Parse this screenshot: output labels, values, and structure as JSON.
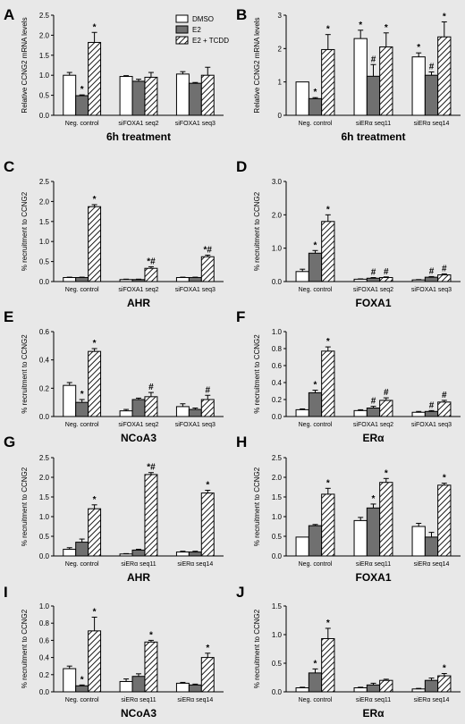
{
  "figure": {
    "legend": {
      "items": [
        {
          "label": "DMSO",
          "fill": "white"
        },
        {
          "label": "E2",
          "fill": "gray"
        },
        {
          "label": "E2 + TCDD",
          "fill": "hatch"
        }
      ]
    },
    "colors": {
      "background": "#e8e8e8",
      "bar_gray": "#707070",
      "outline": "#000000"
    }
  },
  "chart_data": [
    {
      "panel": "A",
      "type": "bar",
      "ylabel": "Relative CCNG2 mRNA levels",
      "xlabel": "6h treatment",
      "ylim": [
        0,
        2.5
      ],
      "yticks": [
        "0.0",
        "0.5",
        "1.0",
        "1.5",
        "2.0",
        "2.5"
      ],
      "categories": [
        "Neg. control",
        "siFOXA1 seq2",
        "siFOXA1 seq3"
      ],
      "series": [
        {
          "name": "DMSO",
          "values": [
            1.0,
            0.97,
            1.03
          ],
          "errors": [
            0.07,
            0.02,
            0.06
          ],
          "marks": [
            "",
            "",
            ""
          ]
        },
        {
          "name": "E2",
          "values": [
            0.49,
            0.85,
            0.8
          ],
          "errors": [
            0.02,
            0.05,
            0.02
          ],
          "marks": [
            "*",
            "",
            ""
          ]
        },
        {
          "name": "E2 + TCDD",
          "values": [
            1.82,
            0.95,
            1.0
          ],
          "errors": [
            0.25,
            0.12,
            0.2
          ],
          "marks": [
            "*",
            "",
            ""
          ]
        }
      ]
    },
    {
      "panel": "B",
      "type": "bar",
      "ylabel": "Relative CCNG2 mRNA levels",
      "xlabel": "6h treatment",
      "ylim": [
        0,
        3
      ],
      "yticks": [
        "0",
        "1",
        "2",
        "3"
      ],
      "categories": [
        "Neg. control",
        "siERα seq11",
        "siERα seq14"
      ],
      "series": [
        {
          "name": "DMSO",
          "values": [
            1.0,
            2.3,
            1.75
          ],
          "errors": [
            0.0,
            0.25,
            0.12
          ],
          "marks": [
            "",
            "*",
            "*"
          ]
        },
        {
          "name": "E2",
          "values": [
            0.5,
            1.17,
            1.2
          ],
          "errors": [
            0.03,
            0.35,
            0.1
          ],
          "marks": [
            "*",
            "#",
            "#"
          ]
        },
        {
          "name": "E2 + TCDD",
          "values": [
            1.97,
            2.05,
            2.35
          ],
          "errors": [
            0.45,
            0.42,
            0.45
          ],
          "marks": [
            "*",
            "*",
            "*"
          ]
        }
      ]
    },
    {
      "panel": "C",
      "type": "bar",
      "ylabel": "% recruitment to CCNG2",
      "xlabel": "AHR",
      "ylim": [
        0,
        2.5
      ],
      "yticks": [
        "0.0",
        "0.5",
        "1.0",
        "1.5",
        "2.0",
        "2.5"
      ],
      "categories": [
        "Neg. control",
        "siFOXA1 seq2",
        "siFOXA1 seq3"
      ],
      "series": [
        {
          "name": "DMSO",
          "values": [
            0.1,
            0.05,
            0.1
          ],
          "errors": [
            0.01,
            0.01,
            0.01
          ],
          "marks": [
            "",
            "",
            ""
          ]
        },
        {
          "name": "E2",
          "values": [
            0.1,
            0.05,
            0.1
          ],
          "errors": [
            0.01,
            0.01,
            0.01
          ],
          "marks": [
            "",
            "",
            ""
          ]
        },
        {
          "name": "E2 + TCDD",
          "values": [
            1.87,
            0.33,
            0.62
          ],
          "errors": [
            0.05,
            0.04,
            0.04
          ],
          "marks": [
            "*",
            "*#",
            "*#"
          ]
        }
      ]
    },
    {
      "panel": "D",
      "type": "bar",
      "ylabel": "% recruitment to CCNG2",
      "xlabel": "FOXA1",
      "ylim": [
        0,
        3
      ],
      "yticks": [
        "0.0",
        "1.0",
        "2.0",
        "3.0"
      ],
      "categories": [
        "Neg. control",
        "siFOXA1 seq2",
        "siFOXA1 seq3"
      ],
      "series": [
        {
          "name": "DMSO",
          "values": [
            0.3,
            0.07,
            0.05
          ],
          "errors": [
            0.07,
            0.01,
            0.01
          ],
          "marks": [
            "",
            "",
            ""
          ]
        },
        {
          "name": "E2",
          "values": [
            0.85,
            0.1,
            0.13
          ],
          "errors": [
            0.08,
            0.02,
            0.02
          ],
          "marks": [
            "*",
            "#",
            "#"
          ]
        },
        {
          "name": "E2 + TCDD",
          "values": [
            1.8,
            0.12,
            0.2
          ],
          "errors": [
            0.2,
            0.02,
            0.03
          ],
          "marks": [
            "*",
            "#",
            "#"
          ]
        }
      ]
    },
    {
      "panel": "E",
      "type": "bar",
      "ylabel": "% recruitment to CCNG2",
      "xlabel": "NCoA3",
      "ylim": [
        0,
        0.6
      ],
      "yticks": [
        "0.0",
        "0.2",
        "0.4",
        "0.6"
      ],
      "categories": [
        "Neg. control",
        "siFOXA1 seq2",
        "siFOXA1 seq3"
      ],
      "series": [
        {
          "name": "DMSO",
          "values": [
            0.22,
            0.04,
            0.07
          ],
          "errors": [
            0.02,
            0.01,
            0.02
          ],
          "marks": [
            "",
            "",
            ""
          ]
        },
        {
          "name": "E2",
          "values": [
            0.1,
            0.12,
            0.05
          ],
          "errors": [
            0.02,
            0.01,
            0.01
          ],
          "marks": [
            "*",
            "",
            ""
          ]
        },
        {
          "name": "E2 + TCDD",
          "values": [
            0.46,
            0.14,
            0.12
          ],
          "errors": [
            0.02,
            0.03,
            0.03
          ],
          "marks": [
            "*",
            "#",
            "#"
          ]
        }
      ]
    },
    {
      "panel": "F",
      "type": "bar",
      "ylabel": "% recruitment to CCNG2",
      "xlabel": "ERα",
      "ylim": [
        0,
        1.0
      ],
      "yticks": [
        "0.0",
        "0.2",
        "0.4",
        "0.6",
        "0.8",
        "1.0"
      ],
      "categories": [
        "Neg. control",
        "siFOXA1 seq2",
        "siFOXA1 seq3"
      ],
      "series": [
        {
          "name": "DMSO",
          "values": [
            0.08,
            0.07,
            0.05
          ],
          "errors": [
            0.01,
            0.01,
            0.01
          ],
          "marks": [
            "",
            "",
            ""
          ]
        },
        {
          "name": "E2",
          "values": [
            0.28,
            0.1,
            0.06
          ],
          "errors": [
            0.03,
            0.02,
            0.01
          ],
          "marks": [
            "*",
            "#",
            "#"
          ]
        },
        {
          "name": "E2 + TCDD",
          "values": [
            0.77,
            0.19,
            0.17
          ],
          "errors": [
            0.05,
            0.03,
            0.02
          ],
          "marks": [
            "*",
            "#",
            "#"
          ]
        }
      ]
    },
    {
      "panel": "G",
      "type": "bar",
      "ylabel": "% recruitment to CCNG2",
      "xlabel": "AHR",
      "ylim": [
        0,
        2.5
      ],
      "yticks": [
        "0.0",
        "0.5",
        "1.0",
        "1.5",
        "2.0",
        "2.5"
      ],
      "categories": [
        "Neg. control",
        "siERα seq11",
        "siERα seq14"
      ],
      "series": [
        {
          "name": "DMSO",
          "values": [
            0.17,
            0.05,
            0.1
          ],
          "errors": [
            0.04,
            0.01,
            0.02
          ],
          "marks": [
            "",
            "",
            ""
          ]
        },
        {
          "name": "E2",
          "values": [
            0.35,
            0.15,
            0.1
          ],
          "errors": [
            0.08,
            0.02,
            0.02
          ],
          "marks": [
            "",
            "",
            ""
          ]
        },
        {
          "name": "E2 + TCDD",
          "values": [
            1.2,
            2.07,
            1.6
          ],
          "errors": [
            0.1,
            0.05,
            0.07
          ],
          "marks": [
            "*",
            "*#",
            "*"
          ]
        }
      ]
    },
    {
      "panel": "H",
      "type": "bar",
      "ylabel": "% recruitment to CCNG2",
      "xlabel": "FOXA1",
      "ylim": [
        0,
        2.5
      ],
      "yticks": [
        "0.0",
        "0.5",
        "1.0",
        "1.5",
        "2.0",
        "2.5"
      ],
      "categories": [
        "Neg. control",
        "siERα seq11",
        "siERα seq14"
      ],
      "series": [
        {
          "name": "DMSO",
          "values": [
            0.48,
            0.9,
            0.75
          ],
          "errors": [
            0.0,
            0.08,
            0.08
          ],
          "marks": [
            "",
            "",
            ""
          ]
        },
        {
          "name": "E2",
          "values": [
            0.77,
            1.22,
            0.48
          ],
          "errors": [
            0.03,
            0.1,
            0.12
          ],
          "marks": [
            "",
            "*",
            ""
          ]
        },
        {
          "name": "E2 + TCDD",
          "values": [
            1.57,
            1.87,
            1.8
          ],
          "errors": [
            0.15,
            0.1,
            0.05
          ],
          "marks": [
            "*",
            "*",
            "*"
          ]
        }
      ]
    },
    {
      "panel": "I",
      "type": "bar",
      "ylabel": "% recruitment to CCNG2",
      "xlabel": "NCoA3",
      "ylim": [
        0,
        1.0
      ],
      "yticks": [
        "0.0",
        "0.2",
        "0.4",
        "0.6",
        "0.8",
        "1.0"
      ],
      "categories": [
        "Neg. control",
        "siERα seq11",
        "siERα seq14"
      ],
      "series": [
        {
          "name": "DMSO",
          "values": [
            0.27,
            0.12,
            0.1
          ],
          "errors": [
            0.03,
            0.03,
            0.01
          ],
          "marks": [
            "",
            "",
            ""
          ]
        },
        {
          "name": "E2",
          "values": [
            0.07,
            0.18,
            0.08
          ],
          "errors": [
            0.01,
            0.03,
            0.01
          ],
          "marks": [
            "*",
            "",
            ""
          ]
        },
        {
          "name": "E2 + TCDD",
          "values": [
            0.71,
            0.58,
            0.4
          ],
          "errors": [
            0.16,
            0.02,
            0.05
          ],
          "marks": [
            "*",
            "*",
            "*"
          ]
        }
      ]
    },
    {
      "panel": "J",
      "type": "bar",
      "ylabel": "% recruitment to CCNG2",
      "xlabel": "ERα",
      "ylim": [
        0,
        1.5
      ],
      "yticks": [
        "0.0",
        "0.5",
        "1.0",
        "1.5"
      ],
      "categories": [
        "Neg. control",
        "siERα seq11",
        "siERα seq14"
      ],
      "series": [
        {
          "name": "DMSO",
          "values": [
            0.07,
            0.07,
            0.05
          ],
          "errors": [
            0.01,
            0.01,
            0.01
          ],
          "marks": [
            "",
            "",
            ""
          ]
        },
        {
          "name": "E2",
          "values": [
            0.33,
            0.12,
            0.2
          ],
          "errors": [
            0.07,
            0.03,
            0.04
          ],
          "marks": [
            "*",
            "",
            ""
          ]
        },
        {
          "name": "E2 + TCDD",
          "values": [
            0.93,
            0.2,
            0.28
          ],
          "errors": [
            0.18,
            0.02,
            0.04
          ],
          "marks": [
            "*",
            "",
            "*"
          ]
        }
      ]
    }
  ]
}
